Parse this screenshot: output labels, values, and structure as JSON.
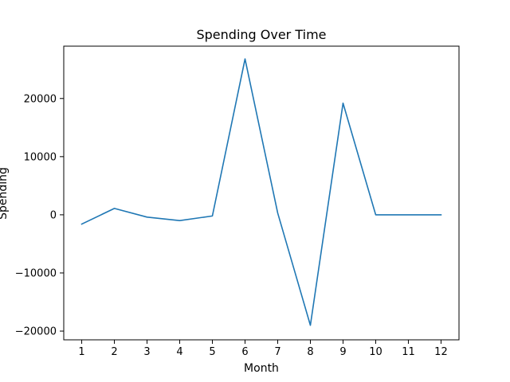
{
  "chart_data": {
    "type": "line",
    "title": "Spending Over Time",
    "xlabel": "Month",
    "ylabel": "Spending",
    "x": [
      1,
      2,
      3,
      4,
      5,
      6,
      7,
      8,
      9,
      10,
      11,
      12
    ],
    "series": [
      {
        "values": [
          -1600,
          1100,
          -400,
          -1000,
          -200,
          26800,
          300,
          -19000,
          19200,
          0,
          0,
          0
        ]
      }
    ],
    "xlim": [
      0.45,
      12.55
    ],
    "ylim": [
      -21500,
      29000
    ],
    "xticks": [
      "1",
      "2",
      "3",
      "4",
      "5",
      "6",
      "7",
      "8",
      "9",
      "10",
      "11",
      "12"
    ],
    "yticks": [
      -20000,
      -10000,
      0,
      10000,
      20000
    ],
    "ytick_labels": [
      "−20000",
      "−10000",
      "0",
      "10000",
      "20000"
    ],
    "grid": false,
    "line_color": "#1f77b4"
  }
}
